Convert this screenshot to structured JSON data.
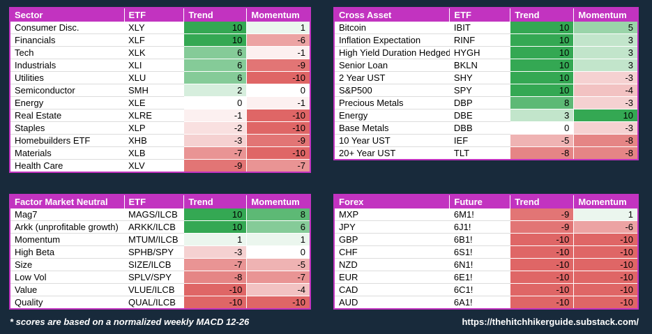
{
  "theme": {
    "background_color": "#182A3B",
    "header_bg_color": "#C233C0",
    "header_text_color": "#FFFFFF",
    "table_border_color": "#C233C0",
    "row_bg_color": "#FFFFFF",
    "cell_text_color": "#000000"
  },
  "heatmap": {
    "positive_color": "#34A853",
    "negative_color": "#DF6666",
    "neutral_color": "#FFFFFF",
    "max_abs": 10
  },
  "footer": {
    "footnote": "* scores are based on a normalized weekly MACD 12-26",
    "url": "https://thehitchhikerguide.substack.com/"
  },
  "tables": {
    "sector": {
      "headers": [
        "Sector",
        "ETF",
        "Trend",
        "Momentum"
      ],
      "rows": [
        {
          "name": "Consumer Disc.",
          "symbol": "XLY",
          "trend": 10,
          "momentum": 1
        },
        {
          "name": "Financials",
          "symbol": "XLF",
          "trend": 10,
          "momentum": -6
        },
        {
          "name": "Tech",
          "symbol": "XLK",
          "trend": 6,
          "momentum": -1
        },
        {
          "name": "Industrials",
          "symbol": "XLI",
          "trend": 6,
          "momentum": -9
        },
        {
          "name": "Utilities",
          "symbol": "XLU",
          "trend": 6,
          "momentum": -10
        },
        {
          "name": "Semiconductor",
          "symbol": "SMH",
          "trend": 2,
          "momentum": 0
        },
        {
          "name": "Energy",
          "symbol": "XLE",
          "trend": 0,
          "momentum": -1
        },
        {
          "name": "Real Estate",
          "symbol": "XLRE",
          "trend": -1,
          "momentum": -10
        },
        {
          "name": "Staples",
          "symbol": "XLP",
          "trend": -2,
          "momentum": -10
        },
        {
          "name": "Homebuilders ETF",
          "symbol": "XHB",
          "trend": -3,
          "momentum": -9
        },
        {
          "name": "Materials",
          "symbol": "XLB",
          "trend": -7,
          "momentum": -10
        },
        {
          "name": "Health Care",
          "symbol": "XLV",
          "trend": -9,
          "momentum": -7
        }
      ]
    },
    "cross_asset": {
      "headers": [
        "Cross Asset",
        "ETF",
        "Trend",
        "Momentum"
      ],
      "rows": [
        {
          "name": "Bitcoin",
          "symbol": "IBIT",
          "trend": 10,
          "momentum": 5
        },
        {
          "name": "Inflation Expectation",
          "symbol": "RINF",
          "trend": 10,
          "momentum": 3
        },
        {
          "name": "High Yield Duration Hedged",
          "symbol": "HYGH",
          "trend": 10,
          "momentum": 3
        },
        {
          "name": "Senior Loan",
          "symbol": "BKLN",
          "trend": 10,
          "momentum": 3
        },
        {
          "name": "2 Year UST",
          "symbol": "SHY",
          "trend": 10,
          "momentum": -3
        },
        {
          "name": "S&P500",
          "symbol": "SPY",
          "trend": 10,
          "momentum": -4
        },
        {
          "name": "Precious Metals",
          "symbol": "DBP",
          "trend": 8,
          "momentum": -3
        },
        {
          "name": "Energy",
          "symbol": "DBE",
          "trend": 3,
          "momentum": 10
        },
        {
          "name": "Base Metals",
          "symbol": "DBB",
          "trend": 0,
          "momentum": -3
        },
        {
          "name": "10 Year UST",
          "symbol": "IEF",
          "trend": -5,
          "momentum": -8
        },
        {
          "name": "20+ Year UST",
          "symbol": "TLT",
          "trend": -8,
          "momentum": -8
        }
      ]
    },
    "factor_market_neutral": {
      "headers": [
        "Factor Market Neutral",
        "ETF",
        "Trend",
        "Momentum"
      ],
      "rows": [
        {
          "name": "Mag7",
          "symbol": "MAGS/ILCB",
          "trend": 10,
          "momentum": 8
        },
        {
          "name": "Arkk (unprofitable growth)",
          "symbol": "ARKK/ILCB",
          "trend": 10,
          "momentum": 6
        },
        {
          "name": "Momentum",
          "symbol": "MTUM/ILCB",
          "trend": 1,
          "momentum": 1
        },
        {
          "name": "High Beta",
          "symbol": "SPHB/SPY",
          "trend": -3,
          "momentum": 0
        },
        {
          "name": "Size",
          "symbol": "SIZE/ILCB",
          "trend": -7,
          "momentum": -5
        },
        {
          "name": "Low Vol",
          "symbol": "SPLV/SPY",
          "trend": -8,
          "momentum": -7
        },
        {
          "name": "Value",
          "symbol": "VLUE/ILCB",
          "trend": -10,
          "momentum": -4
        },
        {
          "name": "Quality",
          "symbol": "QUAL/ILCB",
          "trend": -10,
          "momentum": -10
        }
      ]
    },
    "forex": {
      "headers": [
        "Forex",
        "Future",
        "Trend",
        "Momentum"
      ],
      "rows": [
        {
          "name": "MXP",
          "symbol": "6M1!",
          "trend": -9,
          "momentum": 1
        },
        {
          "name": "JPY",
          "symbol": "6J1!",
          "trend": -9,
          "momentum": -6
        },
        {
          "name": "GBP",
          "symbol": "6B1!",
          "trend": -10,
          "momentum": -10
        },
        {
          "name": "CHF",
          "symbol": "6S1!",
          "trend": -10,
          "momentum": -10
        },
        {
          "name": "NZD",
          "symbol": "6N1!",
          "trend": -10,
          "momentum": -10
        },
        {
          "name": "EUR",
          "symbol": "6E1!",
          "trend": -10,
          "momentum": -10
        },
        {
          "name": "CAD",
          "symbol": "6C1!",
          "trend": -10,
          "momentum": -10
        },
        {
          "name": "AUD",
          "symbol": "6A1!",
          "trend": -10,
          "momentum": -10
        }
      ]
    }
  }
}
